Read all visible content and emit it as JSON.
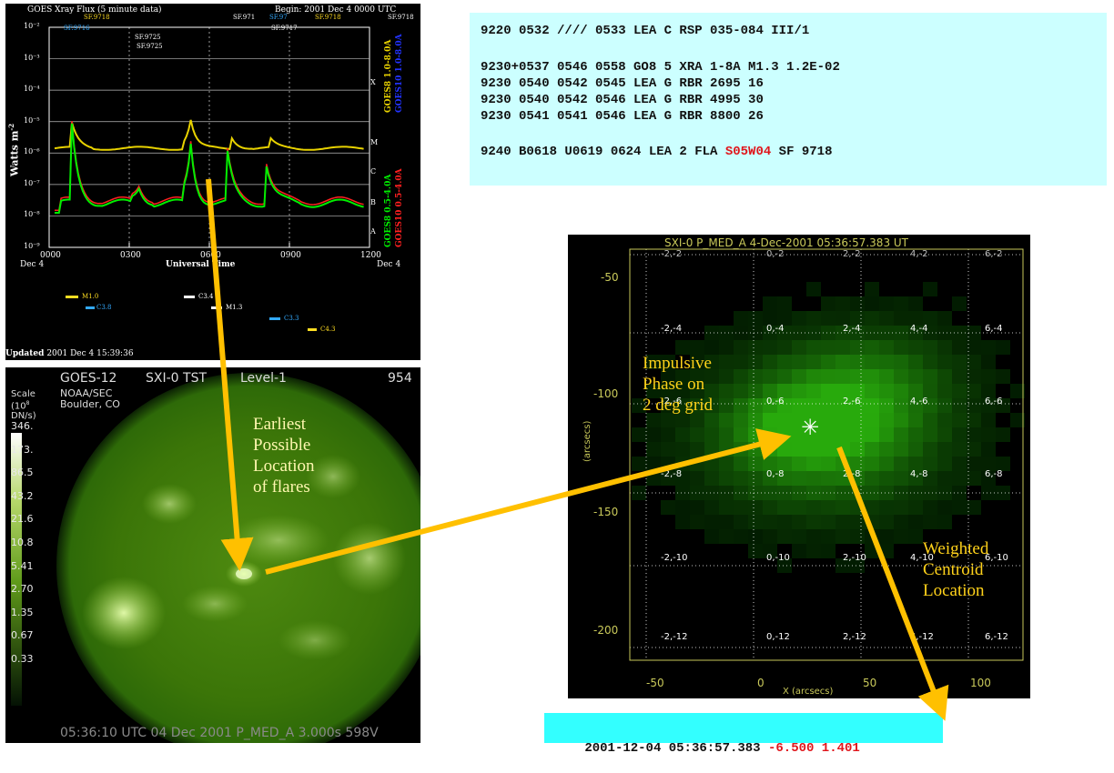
{
  "goes": {
    "title": "GOES Xray Flux (5 minute data)",
    "begin": "Begin: 2001 Dec 4 0000 UTC",
    "ylabel": "Watts m",
    "ylabel_sup": "-2",
    "y_ticks": [
      "10⁻²",
      "10⁻³",
      "10⁻⁴",
      "10⁻⁵",
      "10⁻⁶",
      "10⁻⁷",
      "10⁻⁸",
      "10⁻⁹"
    ],
    "x_ticks": [
      "0000",
      "0300",
      "0600",
      "0900",
      "1200"
    ],
    "x_dates": [
      "Dec 4",
      "Dec 4"
    ],
    "xlabel": "Universal Time",
    "class_letters": [
      "X",
      "M",
      "C",
      "B",
      "A"
    ],
    "right_label_top_1": "GOES8 1.0-8.0A",
    "right_label_top_2": "GOES10 1.0-8.0A",
    "right_label_bot_1": "GOES8 0.5-4.0A",
    "right_label_bot_2": "GOES10 0.5-4.0A",
    "events": [
      {
        "text": "SF.9718",
        "color": "#ffdd22"
      },
      {
        "text": "SF.9716",
        "color": "#33aaff"
      },
      {
        "text": "SF.9725",
        "color": "#ffffff"
      },
      {
        "text": "SF.9725",
        "color": "#ffffff"
      },
      {
        "text": "SF.9718",
        "color": "#ffffff"
      },
      {
        "text": "SF.971",
        "color": "#ffffff"
      },
      {
        "text": "SF.97",
        "color": "#33aaff"
      },
      {
        "text": "SF.9718",
        "color": "#ffdd22"
      },
      {
        "text": "SF.9717",
        "color": "#ffffff"
      }
    ],
    "classes": [
      {
        "text": "M1.0",
        "color": "#ffdd22"
      },
      {
        "text": "C3.8",
        "color": "#33aaff"
      },
      {
        "text": "C3.4",
        "color": "#ffffff"
      },
      {
        "text": "M1.3",
        "color": "#ffffff"
      },
      {
        "text": "C3.3",
        "color": "#33aaff"
      },
      {
        "text": "C4.3",
        "color": "#ffdd22"
      }
    ],
    "updated_label": "Updated",
    "updated_value": "2001 Dec  4 15:39:36",
    "colors": {
      "goes8_long": "#e8d200",
      "goes10_long": "#2233ff",
      "goes8_short": "#00ee00",
      "goes10_short": "#ff2020"
    }
  },
  "report": {
    "line1": "9220 0532 //// 0533 LEA C RSP 035-084 III/1",
    "line2": "9230+0537 0546 0558 GO8 5 XRA 1-8A M1.3 1.2E-02",
    "line3": "9230 0540 0542 0545 LEA G RBR 2695 16",
    "line4": "9230 0540 0542 0546 LEA G RBR 4995 30",
    "line5": "9230 0541 0541 0546 LEA G RBR 8800 26",
    "line6a": "9240 B0618 U0619 0624 LEA 2 FLA ",
    "line6b": "S05W04",
    "line6c": " SF 9718"
  },
  "sxi": {
    "goes": "GOES-12",
    "instrument": "SXI-0  TST",
    "level": "Level-1",
    "frame": "954",
    "org1": "NOAA/SEC",
    "org2": "Boulder, CO",
    "scale1": "Scale",
    "scale2": "(10",
    "scale2_sup": "8",
    "scale3": "DN/s)",
    "ticks": [
      "346.",
      "173.",
      "86.5",
      "43.2",
      "21.6",
      "10.8",
      "5.41",
      "2.70",
      "1.35",
      "0.67",
      "0.33"
    ],
    "footer": "05:36:10 UTC 04 Dec 2001  P_MED_A  3.000s  598V"
  },
  "zoom": {
    "title": "SXI-0 P_MED_A  4-Dec-2001 05:36:57.383 UT",
    "y_ticks": [
      "-50",
      "-100",
      "-150",
      "-200"
    ],
    "x_ticks": [
      "-50",
      "0",
      "50",
      "100"
    ],
    "xlabel": "X (arcsecs)",
    "ylabel": "(arcsecs)",
    "grid_labels": [
      "-2,-4",
      "0,-4",
      "2,-4",
      "4,-4",
      "6,-4",
      "-2,-6",
      "0,-6",
      "2,-6",
      "4,-6",
      "6,-6",
      "-2,-8",
      "0,-8",
      "2,-8",
      "4,-8",
      "6,-8",
      "-2,-10",
      "0,-10",
      "2,-10",
      "4,-10",
      "6,-10",
      "-2,-12",
      "0,-12",
      "2,-12",
      "4,-12",
      "6,-12"
    ],
    "top_labels": [
      "-2,-2",
      "0,-2",
      "2,-2",
      "4,-2",
      "6,-2"
    ],
    "marker": "✳"
  },
  "annotations": {
    "earliest": [
      "Earliest",
      "Possible",
      "Location",
      "of flares"
    ],
    "impulsive": [
      "Impulsive",
      "Phase on",
      "2 deg grid"
    ],
    "weighted": [
      "Weighted",
      "Centroid",
      "Location"
    ],
    "arrow_color": "#ffc000"
  },
  "result": {
    "timestamp": "2001-12-04 05:36:57.383 ",
    "values": "-6.500 1.401"
  }
}
